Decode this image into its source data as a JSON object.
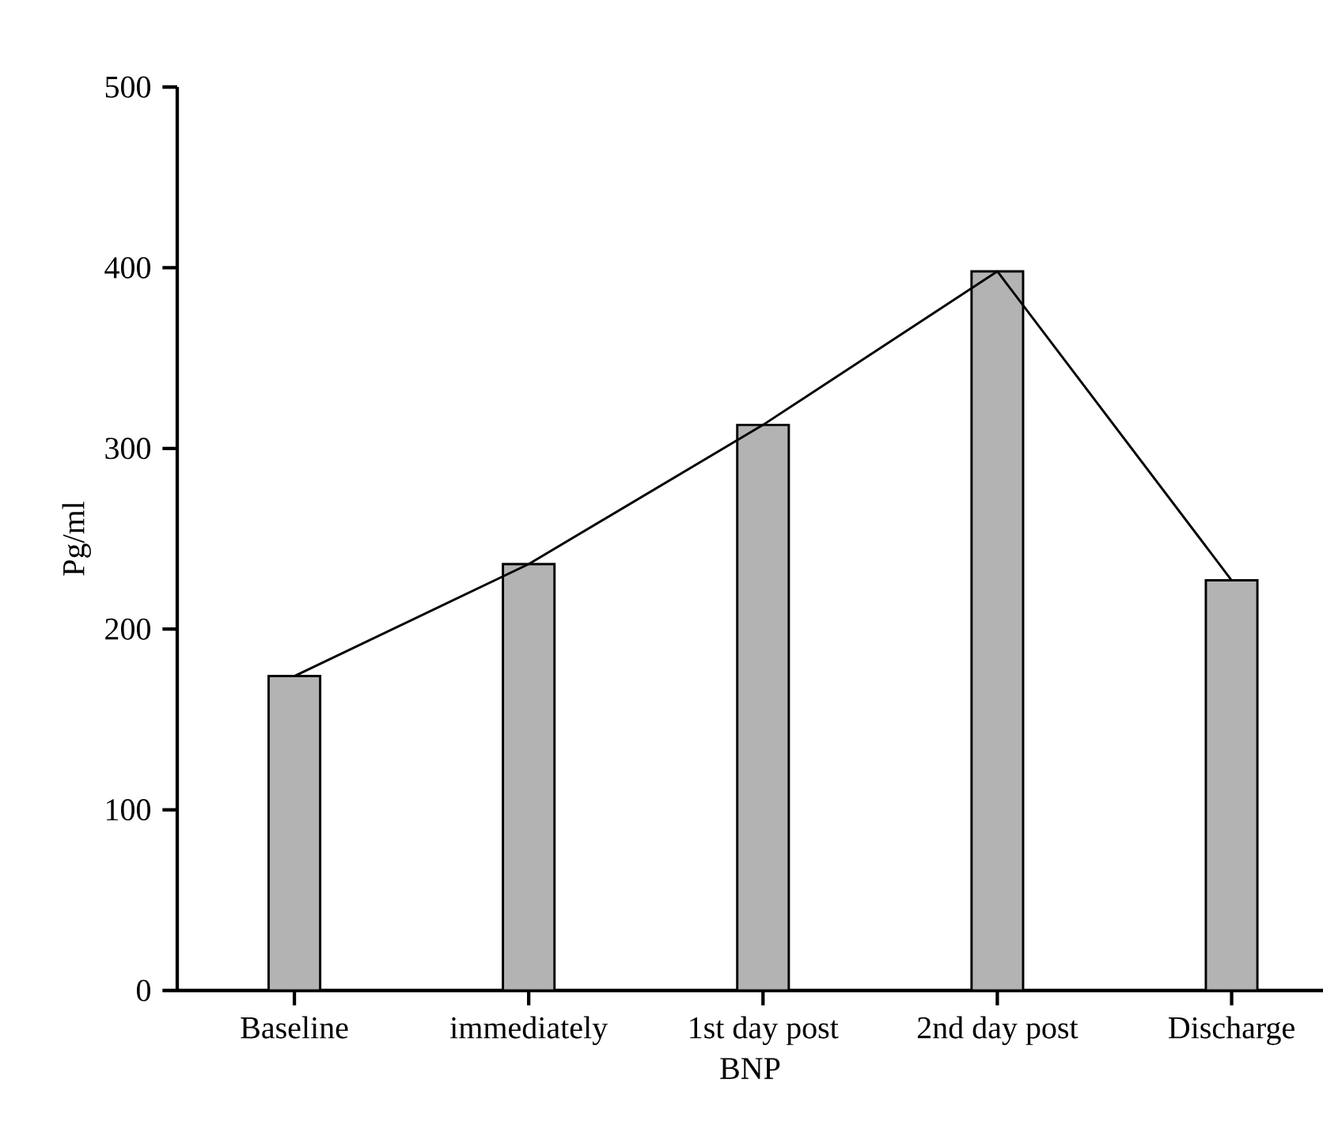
{
  "chart_data": {
    "type": "bar",
    "xlabel": "BNP",
    "ylabel": "Pg/ml",
    "categories": [
      "Baseline",
      "immediately",
      "1st day post",
      "2nd day post",
      "Discharge"
    ],
    "series": [
      {
        "color": "#b3b3b3",
        "values": [
          174,
          236,
          313,
          398,
          227
        ]
      },
      {
        "type": "line",
        "color": "#000000",
        "marker": "none",
        "line_style": "solid",
        "values": [
          174,
          236,
          313,
          398,
          227
        ]
      }
    ],
    "ylim": [
      0,
      500
    ],
    "yticks": [
      0,
      100,
      200,
      300,
      400,
      500
    ]
  }
}
